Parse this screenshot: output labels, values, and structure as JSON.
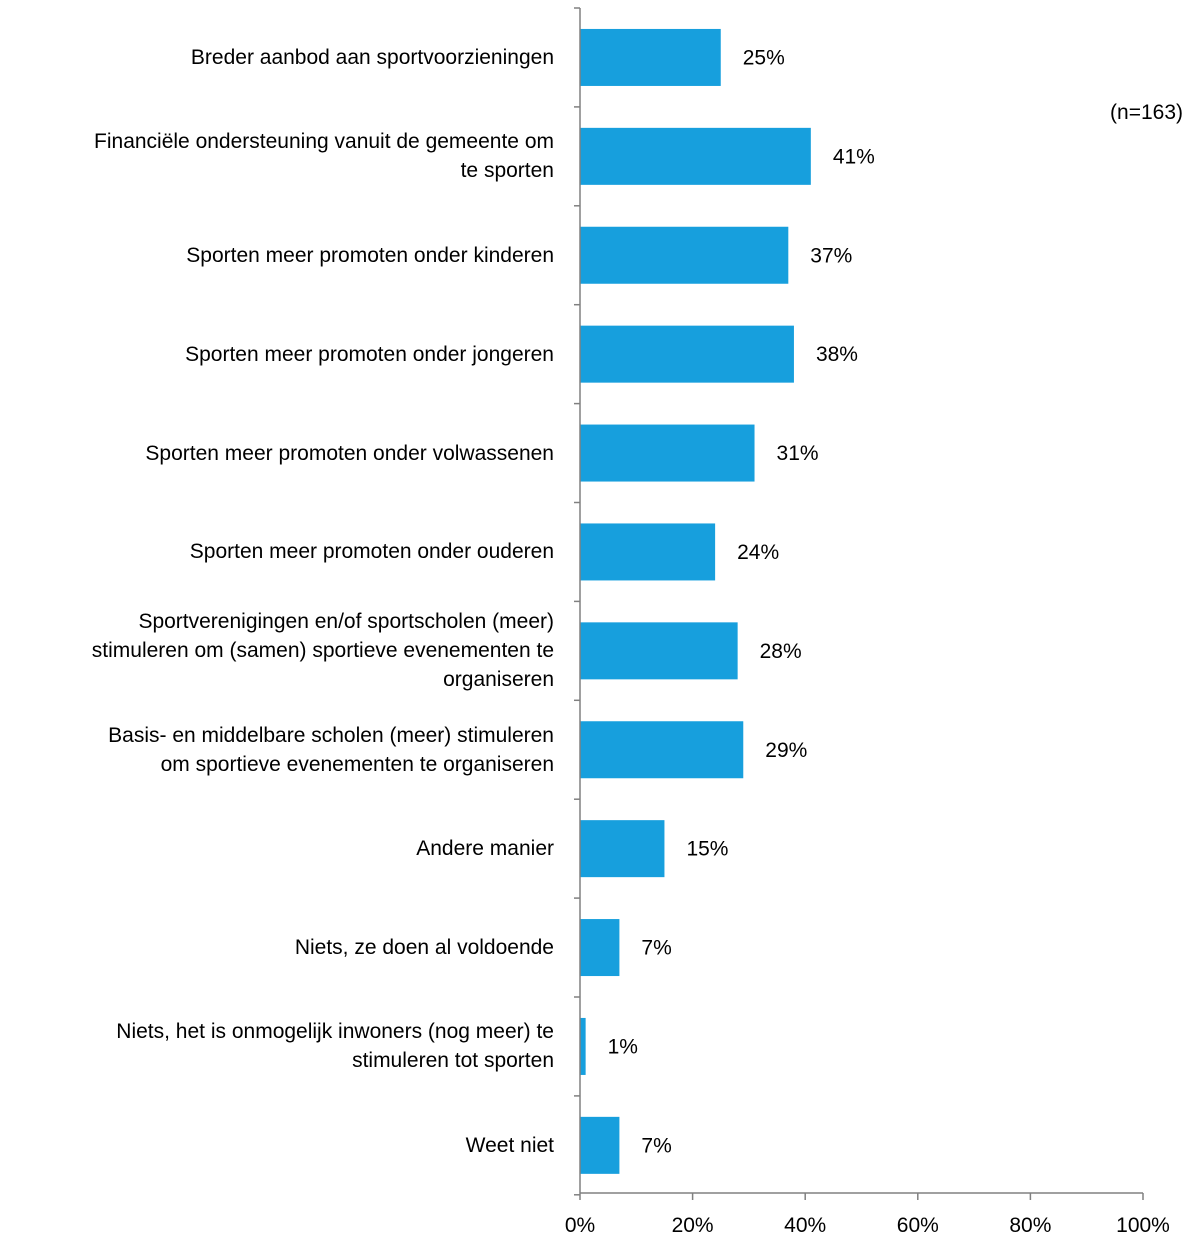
{
  "chart_data": {
    "type": "bar",
    "orientation": "horizontal",
    "categories": [
      "Breder aanbod aan sportvoorzieningen",
      "Financiële ondersteuning vanuit de gemeente om te sporten",
      "Sporten meer promoten onder kinderen",
      "Sporten meer promoten onder jongeren",
      "Sporten meer promoten onder volwassenen",
      "Sporten meer promoten onder ouderen",
      "Sportverenigingen en/of sportscholen (meer) stimuleren om (samen) sportieve evenementen te organiseren",
      "Basis- en middelbare scholen (meer) stimuleren om sportieve evenementen te organiseren",
      "Andere manier",
      "Niets, ze doen al voldoende",
      "Niets, het is onmogelijk inwoners (nog meer) te stimuleren tot sporten",
      "Weet niet"
    ],
    "category_lines": [
      [
        "Breder aanbod aan sportvoorzieningen"
      ],
      [
        "Financiële ondersteuning vanuit de gemeente om",
        "te sporten"
      ],
      [
        "Sporten meer promoten onder kinderen"
      ],
      [
        "Sporten meer promoten onder jongeren"
      ],
      [
        "Sporten meer promoten onder volwassenen"
      ],
      [
        "Sporten meer promoten onder ouderen"
      ],
      [
        "Sportverenigingen en/of sportscholen (meer)",
        "stimuleren om (samen) sportieve evenementen te",
        "organiseren"
      ],
      [
        "Basis- en middelbare scholen (meer) stimuleren",
        "om sportieve evenementen te organiseren"
      ],
      [
        "Andere manier"
      ],
      [
        "Niets, ze doen al voldoende"
      ],
      [
        "Niets, het is onmogelijk inwoners (nog meer) te",
        "stimuleren tot sporten"
      ],
      [
        "Weet niet"
      ]
    ],
    "values": [
      25,
      41,
      37,
      38,
      31,
      24,
      28,
      29,
      15,
      7,
      1,
      7
    ],
    "value_labels": [
      "25%",
      "41%",
      "37%",
      "38%",
      "31%",
      "24%",
      "28%",
      "29%",
      "15%",
      "7%",
      "1%",
      "7%"
    ],
    "xlim": [
      0,
      100
    ],
    "x_ticks": [
      0,
      20,
      40,
      60,
      80,
      100
    ],
    "x_tick_labels": [
      "0%",
      "20%",
      "40%",
      "60%",
      "80%",
      "100%"
    ],
    "grid": false,
    "legend": "none",
    "bar_color": "#179fdd",
    "axis_color": "#808080",
    "annotation": "(n=163)"
  }
}
